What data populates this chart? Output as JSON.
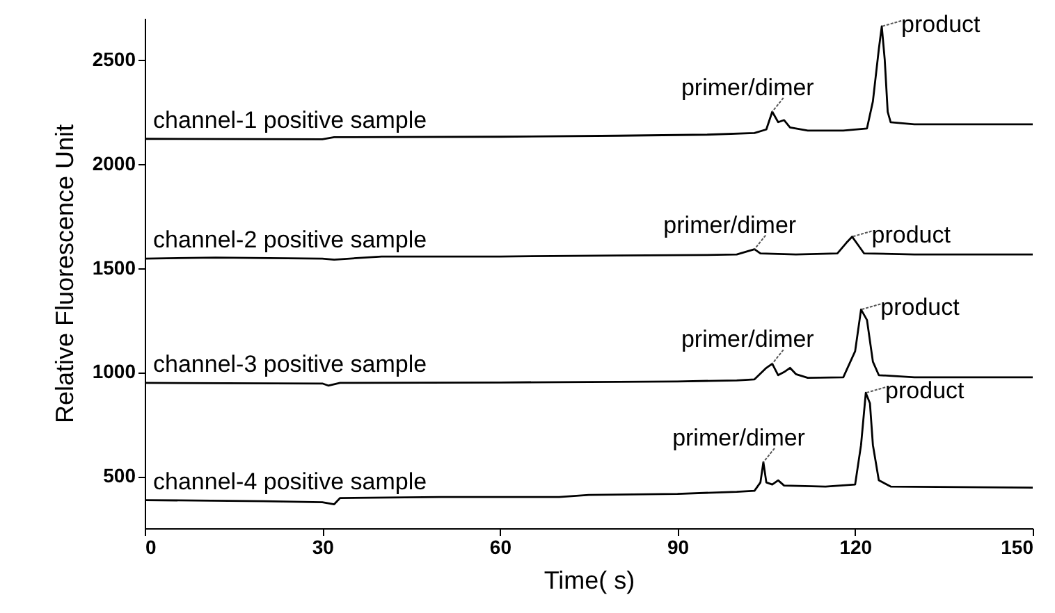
{
  "chart_data": {
    "type": "line",
    "xlabel": "Time(  s)",
    "ylabel": "Relative Fluorescence Unit",
    "xlim": [
      0,
      150
    ],
    "xticks": [
      0,
      30,
      60,
      90,
      120,
      150
    ],
    "ylim": [
      250,
      2700
    ],
    "yticks": [
      500,
      {
        "value": 1000,
        "label": "1000"
      },
      {
        "value": 1500,
        "label": "1500"
      },
      {
        "value": 2000,
        "label": "2000"
      },
      {
        "value": 2500,
        "label": "2500"
      }
    ],
    "grid": false,
    "marker": "none",
    "line_style": "solid",
    "series": [
      {
        "color": "#000000",
        "x": [
          0,
          30,
          32,
          60,
          80,
          95,
          103,
          105,
          106,
          107,
          108,
          109,
          112,
          118,
          122,
          123,
          124,
          124.5,
          125,
          125.5,
          126,
          130,
          150
        ],
        "values": [
          2120,
          2118,
          2128,
          2130,
          2135,
          2140,
          2148,
          2165,
          2250,
          2200,
          2210,
          2175,
          2160,
          2160,
          2170,
          2300,
          2550,
          2660,
          2500,
          2250,
          2200,
          2190,
          2190
        ]
      },
      {
        "color": "#000000",
        "x": [
          0,
          12,
          30,
          32,
          40,
          60,
          80,
          95,
          100,
          103,
          104,
          110,
          117,
          118.5,
          119.5,
          120.5,
          121.5,
          130,
          150
        ],
        "values": [
          1545,
          1550,
          1545,
          1540,
          1555,
          1555,
          1560,
          1562,
          1565,
          1590,
          1570,
          1565,
          1570,
          1620,
          1650,
          1610,
          1570,
          1565,
          1565
        ]
      },
      {
        "color": "#000000",
        "x": [
          0,
          30,
          31,
          33,
          60,
          90,
          100,
          103,
          105,
          106,
          107,
          108,
          109,
          110,
          112,
          118,
          120,
          121,
          122,
          123,
          124,
          130,
          150
        ],
        "values": [
          948,
          945,
          935,
          948,
          950,
          955,
          960,
          965,
          1020,
          1040,
          985,
          1000,
          1020,
          990,
          972,
          975,
          1100,
          1300,
          1250,
          1050,
          985,
          975,
          975
        ]
      },
      {
        "color": "#000000",
        "x": [
          0,
          20,
          30,
          32,
          33,
          50,
          70,
          75,
          90,
          100,
          103,
          104,
          104.5,
          105,
          106,
          107,
          108,
          115,
          120,
          121,
          121.8,
          122.5,
          123,
          124,
          126,
          150
        ],
        "values": [
          385,
          380,
          375,
          365,
          395,
          400,
          400,
          410,
          415,
          425,
          430,
          470,
          567,
          470,
          460,
          480,
          455,
          450,
          460,
          650,
          900,
          850,
          650,
          480,
          450,
          445
        ]
      }
    ],
    "annotations": [
      {
        "text": "channel-1 positive sample",
        "x": 0,
        "y": 2120
      },
      {
        "text": "channel-2 positive sample",
        "x": 0,
        "y": 1545
      },
      {
        "text": "channel-3 positive sample",
        "x": 0,
        "y": 948
      },
      {
        "text": "channel-4 positive sample",
        "x": 0,
        "y": 385
      },
      {
        "text": "primer/dimer",
        "x": 106,
        "y": 2250
      },
      {
        "text": "primer/dimer",
        "x": 103,
        "y": 1590
      },
      {
        "text": "primer/dimer",
        "x": 106,
        "y": 1040
      },
      {
        "text": "primer/dimer",
        "x": 104.5,
        "y": 567
      },
      {
        "text": "product",
        "x": 124.5,
        "y": 2660
      },
      {
        "text": "product",
        "x": 119.5,
        "y": 1650
      },
      {
        "text": "product",
        "x": 121,
        "y": 1300
      },
      {
        "text": "product",
        "x": 121.8,
        "y": 900
      }
    ]
  }
}
